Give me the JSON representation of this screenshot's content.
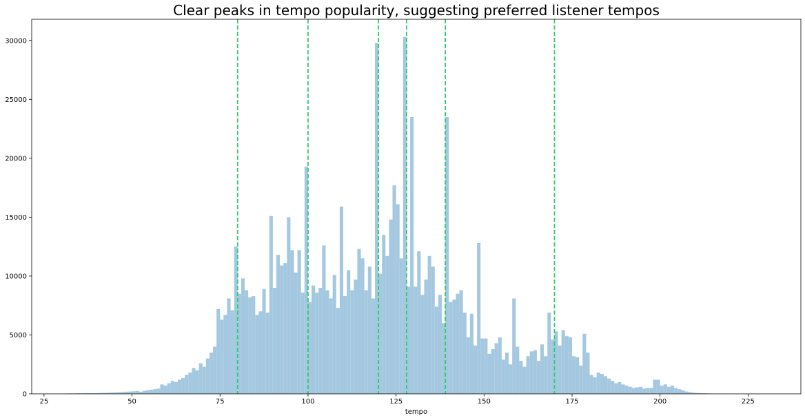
{
  "chart_data": {
    "type": "bar",
    "title": "Clear peaks in tempo popularity, suggesting preferred listener tempos",
    "xlabel": "tempo",
    "ylabel": "",
    "xlim": [
      21.5,
      240
    ],
    "ylim": [
      0,
      31800
    ],
    "xticks": [
      25,
      50,
      75,
      100,
      125,
      150,
      175,
      200,
      225
    ],
    "yticks": [
      0,
      5000,
      10000,
      15000,
      20000,
      25000,
      30000
    ],
    "grid": false,
    "bin_start": 30,
    "bin_width": 1,
    "counts": [
      20,
      30,
      40,
      40,
      50,
      50,
      50,
      60,
      60,
      60,
      70,
      80,
      90,
      100,
      110,
      120,
      140,
      160,
      180,
      200,
      220,
      240,
      180,
      260,
      300,
      350,
      400,
      450,
      800,
      700,
      900,
      1100,
      1000,
      1200,
      1350,
      1600,
      1800,
      2200,
      2000,
      2600,
      2300,
      3000,
      3500,
      4000,
      7200,
      6300,
      6700,
      8100,
      7100,
      12500,
      8500,
      9800,
      8800,
      8200,
      8300,
      6700,
      7000,
      8900,
      6900,
      15100,
      9000,
      11800,
      10900,
      11100,
      15000,
      12200,
      10300,
      12200,
      8600,
      19300,
      7800,
      9200,
      8600,
      9000,
      12600,
      8800,
      8100,
      10100,
      7300,
      15900,
      8300,
      10500,
      8800,
      9700,
      12300,
      11500,
      8800,
      10800,
      8100,
      29800,
      10200,
      13500,
      11700,
      14800,
      17700,
      16100,
      11500,
      30300,
      9100,
      23500,
      9100,
      12100,
      8400,
      9700,
      11700,
      10800,
      7400,
      8400,
      6000,
      23500,
      7800,
      8000,
      8500,
      8800,
      6900,
      4800,
      6800,
      4100,
      12800,
      4700,
      4700,
      3400,
      3800,
      4300,
      4800,
      2900,
      3500,
      2500,
      8100,
      4000,
      2800,
      2300,
      3200,
      3600,
      3700,
      2800,
      4200,
      3200,
      6900,
      4600,
      5300,
      4100,
      5400,
      4900,
      4800,
      3200,
      3100,
      2400,
      5100,
      3500,
      1600,
      1400,
      1800,
      1700,
      1500,
      1300,
      1100,
      900,
      1000,
      800,
      700,
      600,
      500,
      550,
      600,
      450,
      500,
      500,
      1200,
      1200,
      700,
      800,
      600,
      700,
      500,
      400,
      300,
      200,
      150,
      100,
      80,
      60,
      50,
      40,
      30,
      20,
      20,
      10,
      10,
      10
    ],
    "vlines": [
      80,
      100,
      120,
      128,
      139,
      170
    ],
    "bar_color": "#a5c8e1",
    "vline_color": "#2ecc71"
  }
}
